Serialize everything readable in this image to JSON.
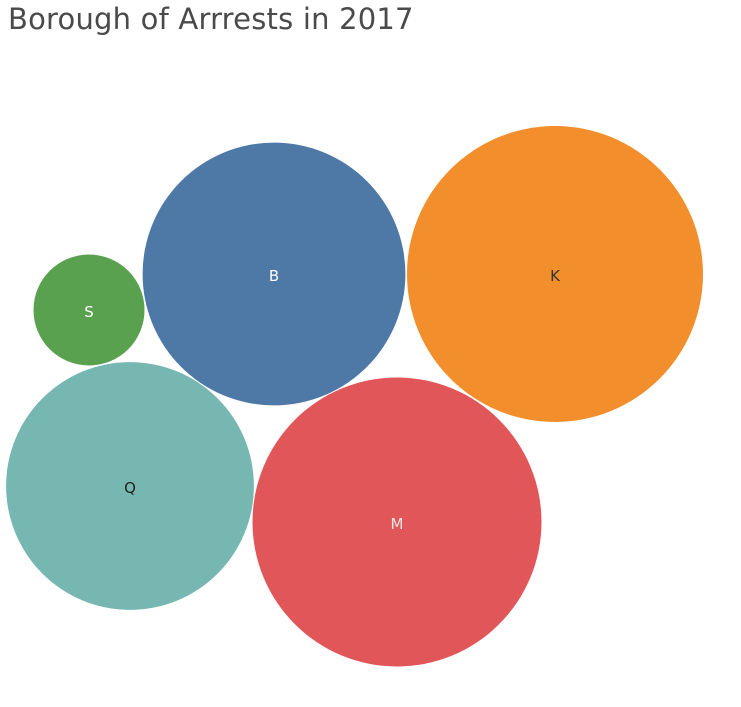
{
  "chart_data": {
    "type": "bubble",
    "title": "Borough of Arrrests in 2017",
    "series": [
      {
        "name": "S",
        "color": "#59a14f",
        "label_color": "#ffffff",
        "value": 12300
      },
      {
        "name": "B",
        "color": "#4e79a7",
        "label_color": "#ffffff",
        "value": 69000
      },
      {
        "name": "K",
        "color": "#f28e2b",
        "label_color": "#333333",
        "value": 87600
      },
      {
        "name": "Q",
        "color": "#76b7b2",
        "label_color": "#222222",
        "value": 61400
      },
      {
        "name": "M",
        "color": "#e15759",
        "label_color": "#f3e6e6",
        "value": 83500
      }
    ]
  }
}
